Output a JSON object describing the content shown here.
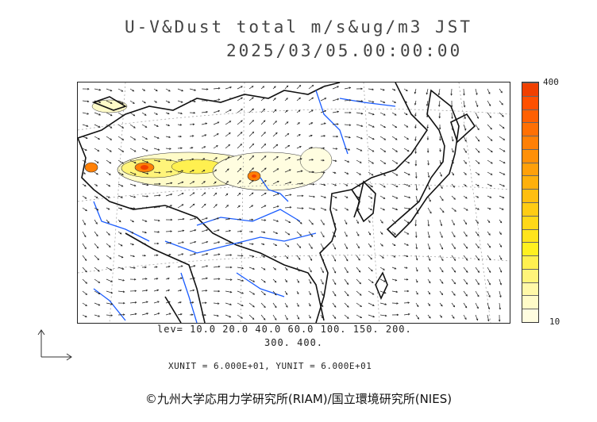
{
  "title": {
    "line1": "U-V&Dust total m/s&ug/m3 JST",
    "line2": "2025/03/05.00:00:00"
  },
  "colorbar": {
    "max_label": "400",
    "min_label": "10",
    "colors": [
      "#fffde0",
      "#fffbc8",
      "#fff8a8",
      "#fff47a",
      "#fff050",
      "#fff020",
      "#ffe41c",
      "#ffd818",
      "#ffcc14",
      "#ffbe10",
      "#ffb00c",
      "#ffa00a",
      "#ff9008",
      "#ff8006",
      "#ff7004",
      "#ff6002",
      "#ff5000",
      "#f04000"
    ]
  },
  "levels": {
    "line1": "lev= 10.0 20.0 40.0 60.0 100. 150. 200.",
    "line2": "300. 400."
  },
  "units": {
    "text": "XUNIT = 6.000E+01, YUNIT = 6.000E+01"
  },
  "credit": {
    "text": "©九州大学応用力学研究所(RIAM)/国立環境研究所(NIES)"
  },
  "map_colors": {
    "coast": "#111111",
    "rivers": "#1a5cff",
    "grid": "#999999",
    "arrows": "#222222"
  }
}
